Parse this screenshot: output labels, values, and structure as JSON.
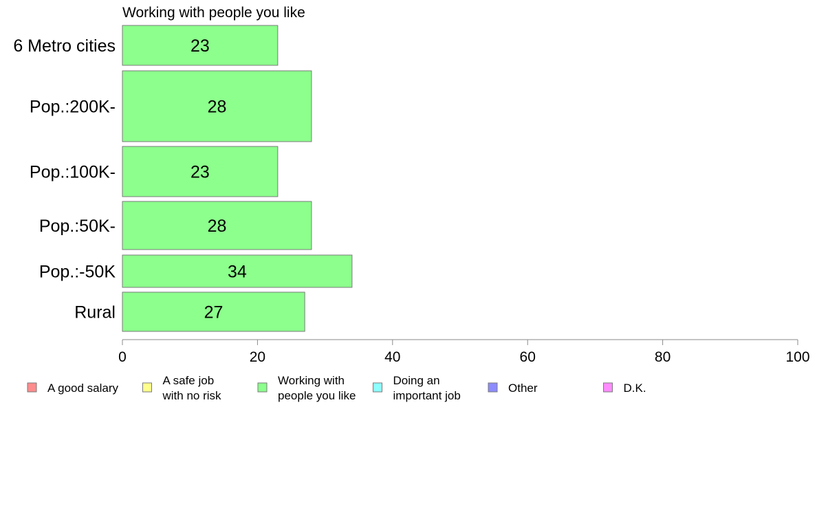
{
  "chart_data": {
    "type": "bar",
    "orientation": "horizontal",
    "title": "Working with people you like",
    "categories": [
      "6 Metro cities",
      "Pop.:200K-",
      "Pop.:100K-",
      "Pop.:50K-",
      "Pop.:-50K",
      "Rural"
    ],
    "values": [
      23,
      28,
      23,
      28,
      34,
      27
    ],
    "xlim": [
      0,
      100
    ],
    "xticks": [
      0,
      20,
      40,
      60,
      80,
      100
    ],
    "grid": false,
    "bar_color": "#8cff8c",
    "legend_position": "bottom",
    "legend": [
      {
        "lines": [
          "A good salary"
        ],
        "color": "#ff8c8c"
      },
      {
        "lines": [
          "A safe job",
          "with no risk"
        ],
        "color": "#ffff8c"
      },
      {
        "lines": [
          "Working with",
          "people you like"
        ],
        "color": "#8cff8c"
      },
      {
        "lines": [
          "Doing an",
          "important job"
        ],
        "color": "#8cffff"
      },
      {
        "lines": [
          "Other"
        ],
        "color": "#8c8cff"
      },
      {
        "lines": [
          "D.K."
        ],
        "color": "#ff8cff"
      }
    ]
  }
}
